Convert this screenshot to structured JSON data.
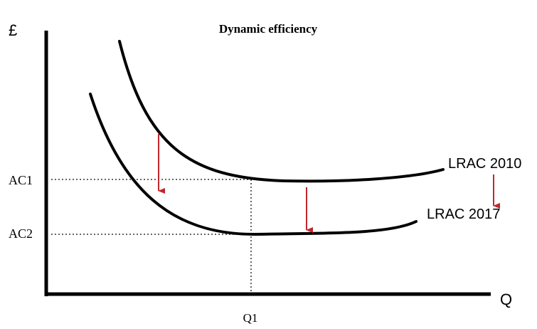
{
  "title": "Dynamic efficiency",
  "axes": {
    "y_label": "£",
    "x_label": "Q"
  },
  "levels": {
    "ac1": "AC1",
    "ac2": "AC2",
    "q1": "Q1"
  },
  "curves": {
    "lrac_2010": "LRAC 2010",
    "lrac_2017": "LRAC 2017"
  },
  "colors": {
    "axis": "#000000",
    "curve": "#000000",
    "arrow": "#c0272d",
    "guide": "#333333"
  }
}
